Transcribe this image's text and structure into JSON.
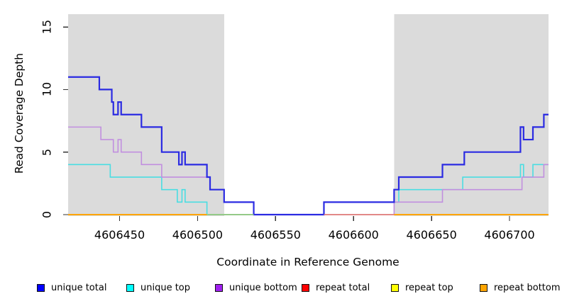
{
  "chart_data": {
    "type": "line",
    "step": true,
    "title": "",
    "xlabel": "Coordinate in Reference Genome",
    "ylabel": "Read Coverage Depth",
    "xlim": [
      4606417,
      4606725
    ],
    "ylim": [
      0,
      16
    ],
    "x_ticks": [
      4606450,
      4606500,
      4606550,
      4606600,
      4606650,
      4606700
    ],
    "y_ticks": [
      0,
      5,
      10,
      15
    ],
    "grid": false,
    "legend_position": "bottom",
    "background_bands": [
      {
        "name": "left-shaded-region",
        "x_from": 4606417,
        "x_to": 4606517,
        "color": "#DBDBDB"
      },
      {
        "name": "right-shaded-region",
        "x_from": 4606626,
        "x_to": 4606725,
        "color": "#DBDBDB"
      }
    ],
    "series": [
      {
        "name": "unique total",
        "legend_color": "#0000FF",
        "line_color": "#2B2BE2",
        "width": 2.2,
        "points": [
          [
            4606417,
            11
          ],
          [
            4606437,
            10
          ],
          [
            4606445,
            9
          ],
          [
            4606446,
            8
          ],
          [
            4606449,
            9
          ],
          [
            4606451,
            8
          ],
          [
            4606464,
            7
          ],
          [
            4606477,
            5
          ],
          [
            4606488,
            4
          ],
          [
            4606490,
            5
          ],
          [
            4606492,
            4
          ],
          [
            4606506,
            3
          ],
          [
            4606508,
            2
          ],
          [
            4606517,
            1
          ],
          [
            4606536,
            0
          ],
          [
            4606581,
            1
          ],
          [
            4606626,
            2
          ],
          [
            4606629,
            3
          ],
          [
            4606657,
            4
          ],
          [
            4606671,
            5
          ],
          [
            4606707,
            7
          ],
          [
            4606709,
            6
          ],
          [
            4606715,
            7
          ],
          [
            4606722,
            8
          ],
          [
            4606725,
            8
          ]
        ]
      },
      {
        "name": "unique top",
        "legend_color": "#00FFFF",
        "line_color": "#4ADDE2",
        "width": 1.6,
        "points": [
          [
            4606417,
            4
          ],
          [
            4606444,
            3
          ],
          [
            4606477,
            2
          ],
          [
            4606487,
            1
          ],
          [
            4606490,
            2
          ],
          [
            4606492,
            1
          ],
          [
            4606506,
            0
          ],
          [
            4606581,
            1
          ],
          [
            4606629,
            2
          ],
          [
            4606670,
            3
          ],
          [
            4606707,
            4
          ],
          [
            4606709,
            3
          ],
          [
            4606715,
            4
          ],
          [
            4606725,
            4
          ]
        ]
      },
      {
        "name": "unique bottom",
        "legend_color": "#A020F0",
        "line_color": "#C18FDF",
        "width": 1.6,
        "points": [
          [
            4606417,
            7
          ],
          [
            4606438,
            6
          ],
          [
            4606446,
            5
          ],
          [
            4606449,
            6
          ],
          [
            4606451,
            5
          ],
          [
            4606464,
            4
          ],
          [
            4606477,
            3
          ],
          [
            4606508,
            2
          ],
          [
            4606517,
            1
          ],
          [
            4606536,
            0
          ],
          [
            4606626,
            1
          ],
          [
            4606657,
            2
          ],
          [
            4606708,
            3
          ],
          [
            4606722,
            4
          ],
          [
            4606725,
            4
          ]
        ]
      },
      {
        "name": "repeat total",
        "legend_color": "#FF0000",
        "line_color": "#E2838F",
        "width": 1.6,
        "points": [
          [
            4606417,
            0
          ],
          [
            4606725,
            0
          ]
        ]
      },
      {
        "name": "repeat top",
        "legend_color": "#FFFF00",
        "line_color": "#F5F500",
        "width": 1.6,
        "points": [
          [
            4606417,
            0
          ],
          [
            4606725,
            0
          ]
        ]
      },
      {
        "name": "repeat bottom",
        "legend_color": "#FFA500",
        "line_color": "#FFA500",
        "width": 2.0,
        "points": [
          [
            4606417,
            0
          ],
          [
            4606725,
            0
          ]
        ]
      }
    ],
    "baseline_visible_segments": [
      {
        "series": "repeat bottom",
        "color": "#FFA500",
        "from": 4606417,
        "to": 4606506,
        "width": 2.0
      },
      {
        "series": "unique top + repeat top",
        "color": "#8FCE8F",
        "from": 4606506,
        "to": 4606536,
        "width": 1.6
      },
      {
        "series": "repeat total",
        "color": "#E2838F",
        "from": 4606581,
        "to": 4606626,
        "width": 1.6
      },
      {
        "series": "repeat bottom",
        "color": "#FFA500",
        "from": 4606626,
        "to": 4606725,
        "width": 2.0
      }
    ]
  }
}
